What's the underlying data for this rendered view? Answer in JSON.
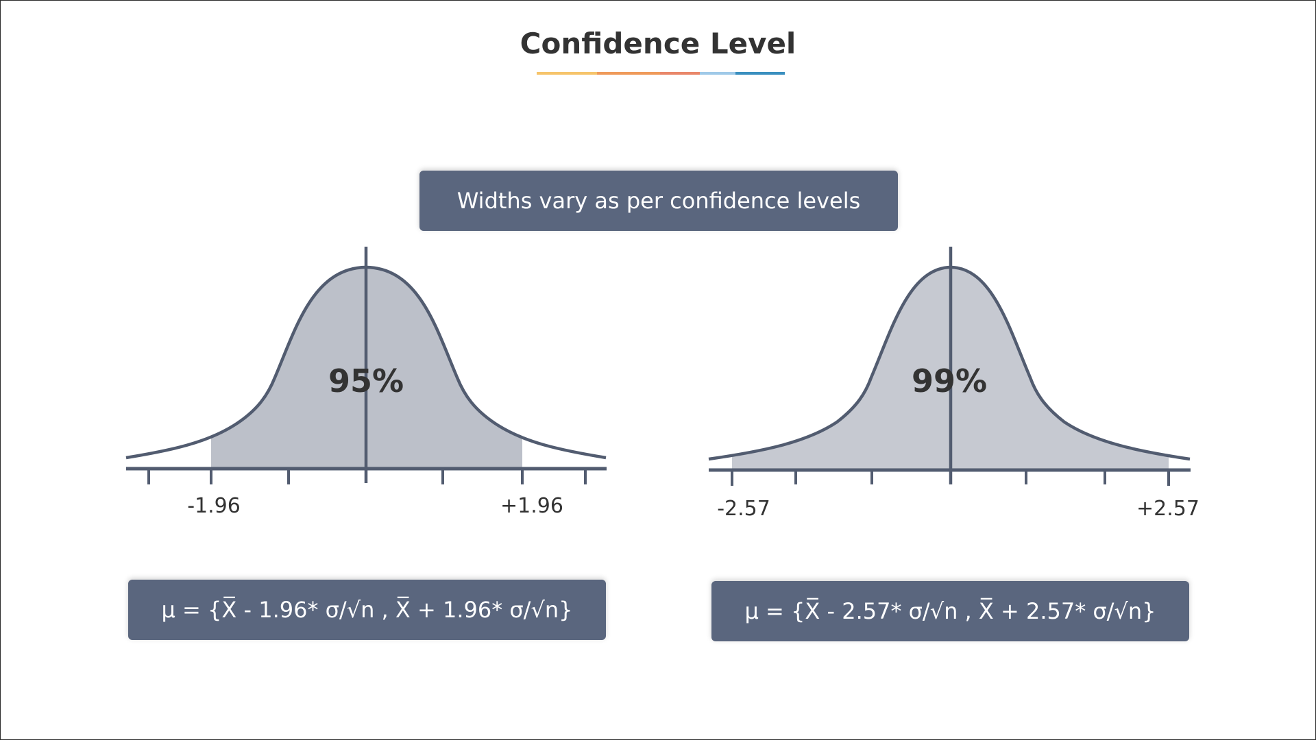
{
  "title": "Confidence Level",
  "underline_colors": [
    "#f6c46b",
    "#ef9a5a",
    "#e9876a",
    "#9fc9e8",
    "#3a8fbf"
  ],
  "subtitle_box": "Widths vary as per confidence levels",
  "colors": {
    "box_bg": "#5a667e",
    "curve_line": "#525c70",
    "shade_95": "#bcc0c9",
    "shade_99": "#c6c9d1"
  },
  "diagrams": [
    {
      "percent_label": "95%",
      "left_label": "-1.96",
      "right_label": "+1.96",
      "critical_value": 1.96,
      "formula": "μ = {X̅ - 1.96* σ/√n , X̅ + 1.96* σ/√n}"
    },
    {
      "percent_label": "99%",
      "left_label": "-2.57",
      "right_label": "+2.57",
      "critical_value": 2.57,
      "formula": "μ = {X̅ - 2.57* σ/√n , X̅ + 2.57* σ/√n}"
    }
  ]
}
